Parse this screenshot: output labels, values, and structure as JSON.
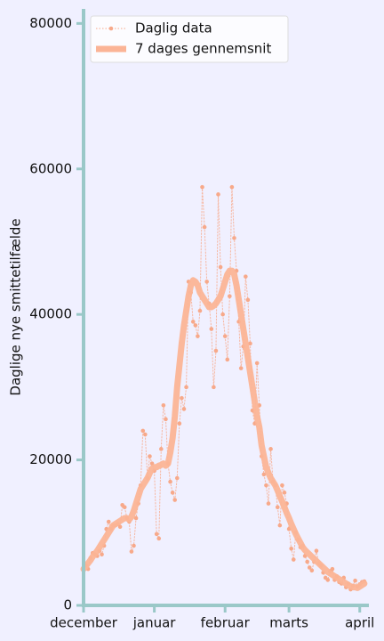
{
  "chart_data": {
    "type": "line",
    "y_label": "Daglige nye smittetilfælde",
    "x": [
      0,
      1,
      2,
      3,
      4,
      5,
      6,
      7,
      8,
      9,
      10,
      11,
      12,
      13,
      14,
      15,
      16,
      17,
      18,
      19,
      20,
      21,
      22,
      23,
      24,
      25,
      26,
      27,
      28,
      29,
      30,
      31,
      32,
      33,
      34,
      35,
      36,
      37,
      38,
      39,
      40,
      41,
      42,
      43,
      44,
      45,
      46,
      47,
      48,
      49,
      50,
      51,
      52,
      53,
      54,
      55,
      56,
      57,
      58,
      59,
      60,
      61,
      62,
      63,
      64,
      65,
      66,
      67,
      68,
      69,
      70,
      71,
      72,
      73,
      74,
      75,
      76,
      77,
      78,
      79,
      80,
      81,
      82,
      83,
      84,
      85,
      86,
      87,
      88,
      89,
      90,
      91,
      92,
      93,
      94,
      95,
      96,
      97,
      98,
      99,
      100,
      101,
      102,
      103,
      104,
      105,
      106,
      107,
      108,
      109,
      110,
      111,
      112,
      113,
      114,
      115,
      116,
      117,
      118,
      119,
      120,
      121,
      122,
      123
    ],
    "series": [
      {
        "name": "Daglig data",
        "color": "#f7a98a",
        "style": "dotted-markers",
        "values": [
          4800,
          5500,
          5000,
          6500,
          7200,
          7000,
          6800,
          7500,
          7000,
          8200,
          10500,
          11500,
          10500,
          11000,
          11000,
          11200,
          10800,
          13800,
          13500,
          12000,
          11500,
          7400,
          8200,
          12000,
          14000,
          16500,
          24000,
          23500,
          17500,
          20500,
          19500,
          18500,
          9800,
          9200,
          21500,
          27500,
          25600,
          19500,
          17000,
          15500,
          14500,
          17500,
          25000,
          28500,
          27000,
          30000,
          44500,
          43000,
          39000,
          38500,
          37000,
          40500,
          57500,
          52000,
          44500,
          41500,
          38000,
          30000,
          35000,
          56500,
          46500,
          40000,
          37000,
          33800,
          42500,
          57500,
          50500,
          46000,
          39000,
          32600,
          35600,
          45200,
          42000,
          36000,
          26800,
          25000,
          33300,
          27500,
          20500,
          18000,
          16500,
          14000,
          21500,
          17000,
          16500,
          13500,
          11000,
          16500,
          15500,
          14000,
          10500,
          7800,
          6300,
          10000,
          9000,
          8000,
          8200,
          6800,
          6000,
          5200,
          4800,
          6000,
          7500,
          5800,
          5500,
          4500,
          3800,
          3500,
          4700,
          5000,
          3500,
          4000,
          3200,
          3000,
          3800,
          2500,
          3000,
          2200,
          2700,
          3400,
          2600,
          2900,
          3200,
          3300
        ]
      },
      {
        "name": "7 dages gennemsnit",
        "color": "#fbb496",
        "style": "thick",
        "values": [
          5000,
          5400,
          5800,
          6200,
          6700,
          7100,
          7500,
          8000,
          8500,
          9000,
          9500,
          10000,
          10500,
          11000,
          11200,
          11400,
          11600,
          11800,
          12000,
          12000,
          11800,
          12200,
          13000,
          14000,
          15000,
          16000,
          16500,
          17000,
          17500,
          18200,
          18800,
          19000,
          19000,
          19200,
          19300,
          19500,
          19200,
          19500,
          21000,
          23000,
          26000,
          30000,
          33000,
          36000,
          38500,
          40500,
          42500,
          44000,
          44700,
          44500,
          44000,
          43000,
          42500,
          42000,
          41500,
          41000,
          41000,
          41200,
          41500,
          42000,
          42500,
          43500,
          44500,
          45500,
          46000,
          46000,
          45500,
          44000,
          42000,
          40000,
          38000,
          36000,
          34000,
          32000,
          30000,
          28000,
          26000,
          24500,
          22000,
          20500,
          19000,
          18200,
          17500,
          17000,
          16500,
          15800,
          15000,
          14300,
          13500,
          12700,
          12000,
          11200,
          10500,
          9800,
          9200,
          8600,
          8000,
          7600,
          7300,
          7000,
          6700,
          6400,
          6100,
          5800,
          5500,
          5200,
          4900,
          4600,
          4400,
          4200,
          4000,
          3800,
          3600,
          3400,
          3200,
          3000,
          2800,
          2600,
          2500,
          2500,
          2400,
          2600,
          2800,
          3000
        ]
      }
    ],
    "xlim": [
      0,
      125
    ],
    "xticks": [
      {
        "value": 0,
        "label": "december"
      },
      {
        "value": 31,
        "label": "januar"
      },
      {
        "value": 62,
        "label": "februar"
      },
      {
        "value": 90,
        "label": "marts"
      },
      {
        "value": 121,
        "label": "april"
      }
    ],
    "ylim": [
      0,
      82000
    ],
    "yticks": [
      0,
      20000,
      40000,
      60000,
      80000
    ],
    "legend": "upper left",
    "axis_color": "#9ac8c8",
    "background": "#f0f0ff"
  }
}
